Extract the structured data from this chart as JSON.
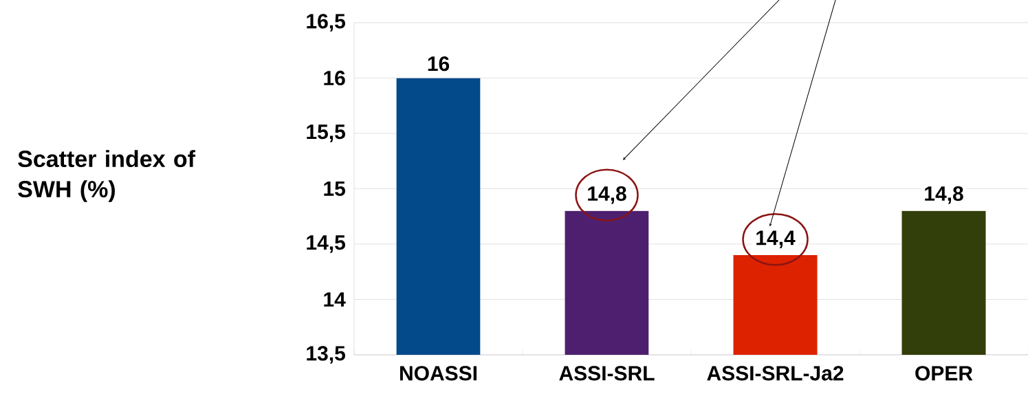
{
  "chart_data": {
    "type": "bar",
    "ylabel": "Scatter index of SWH (%)",
    "categories": [
      "NOASSI",
      "ASSI-SRL",
      "ASSI-SRL-Ja2",
      "OPER"
    ],
    "values": [
      16,
      14.8,
      14.4,
      14.8
    ],
    "colors": [
      "#034a8a",
      "#4e1f6e",
      "#dd2200",
      "#333f0a"
    ],
    "value_labels": [
      "16",
      "14,8",
      "14,4",
      "14,8"
    ],
    "ylim": [
      13.5,
      16.5
    ],
    "yticks": [
      {
        "value": 13.5,
        "label": "13,5"
      },
      14,
      {
        "value": 14.5,
        "label": "14,5"
      },
      15,
      {
        "value": 15.5,
        "label": "15,5"
      },
      16,
      {
        "value": 16.5,
        "label": "16,5"
      }
    ],
    "grid": "y"
  }
}
